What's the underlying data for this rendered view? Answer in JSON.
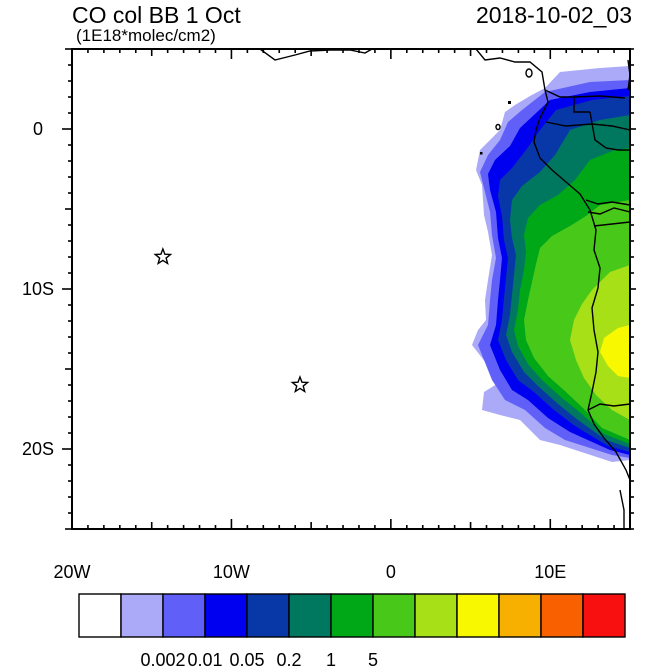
{
  "header": {
    "title": "CO col BB 1 Oct",
    "units": "(1E18*molec/cm2)",
    "datetime": "2018-10-02_03"
  },
  "map": {
    "lon_range": [
      -20,
      15
    ],
    "lat_range": [
      -25,
      5
    ],
    "x_ticks": [
      {
        "value": -20,
        "label": "20W"
      },
      {
        "value": -10,
        "label": "10W"
      },
      {
        "value": 0,
        "label": "0"
      },
      {
        "value": 10,
        "label": "10E"
      }
    ],
    "y_ticks": [
      {
        "value": 0,
        "label": "0"
      },
      {
        "value": -10,
        "label": "10S"
      },
      {
        "value": -20,
        "label": "20S"
      }
    ],
    "markers": [
      {
        "name": "star",
        "lon": -14.3,
        "lat": -8.0
      },
      {
        "name": "star",
        "lon": -5.7,
        "lat": -16.0
      }
    ]
  },
  "colorbar": {
    "colors": [
      "#ffffff",
      "#aaaaf8",
      "#6060f8",
      "#0000f0",
      "#0838a8",
      "#007860",
      "#00a818",
      "#48c818",
      "#a8e018",
      "#f8f800",
      "#f8b000",
      "#f86000",
      "#f81010"
    ],
    "labels": [
      {
        "after_box": 2,
        "text": "0.002"
      },
      {
        "after_box": 3,
        "text": "0.01"
      },
      {
        "after_box": 4,
        "text": "0.05"
      },
      {
        "after_box": 5,
        "text": "0.2"
      },
      {
        "after_box": 6,
        "text": "1"
      },
      {
        "after_box": 7,
        "text": "5"
      }
    ]
  }
}
